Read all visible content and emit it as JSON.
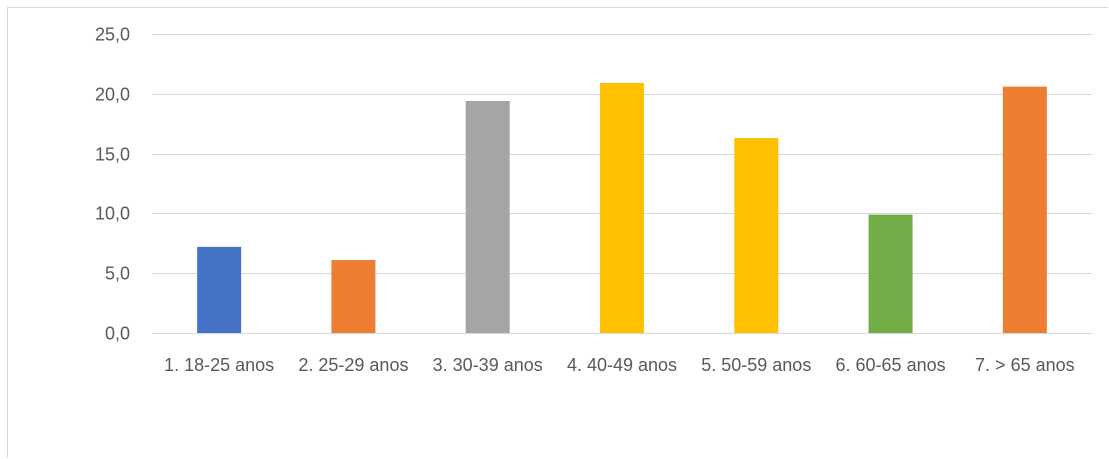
{
  "chart_data": {
    "type": "bar",
    "categories": [
      "1. 18-25 anos",
      "2. 25-29 anos",
      "3. 30-39 anos",
      "4. 40-49 anos",
      "5. 50-59 anos",
      "6. 60-65 anos",
      "7. > 65 anos"
    ],
    "values": [
      7.2,
      6.1,
      19.4,
      20.9,
      16.3,
      9.9,
      20.6
    ],
    "bar_colors": [
      "#4472C4",
      "#ED7D31",
      "#A5A5A5",
      "#FFC000",
      "#FFC000",
      "#70AD47",
      "#ED7D31"
    ],
    "y_ticks": [
      "0,0",
      "5,0",
      "10,0",
      "15,0",
      "20,0",
      "25,0"
    ],
    "ylim": [
      0,
      25
    ],
    "grid": true,
    "gridline_color": "#d9d9d9",
    "title": "",
    "xlabel": "",
    "ylabel": ""
  }
}
